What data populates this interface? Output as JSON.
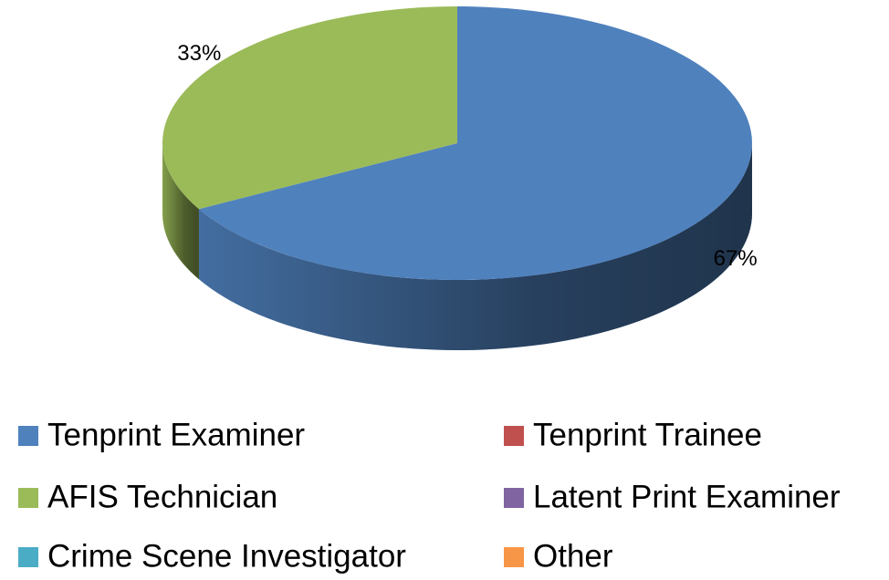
{
  "chart_data": {
    "type": "pie3d",
    "categories": [
      "Tenprint Examiner",
      "Tenprint Trainee",
      "AFIS Technician",
      "Latent Print Examiner",
      "Crime Scene Investigator",
      "Other"
    ],
    "values": [
      67,
      0,
      33,
      0,
      0,
      0
    ],
    "value_labels": [
      "67%",
      null,
      "33%",
      null,
      null,
      null
    ],
    "colors": [
      "#4f81bd",
      "#c0504d",
      "#9bbb59",
      "#8064a2",
      "#4bacc6",
      "#f79646"
    ],
    "legend": "bottom"
  }
}
